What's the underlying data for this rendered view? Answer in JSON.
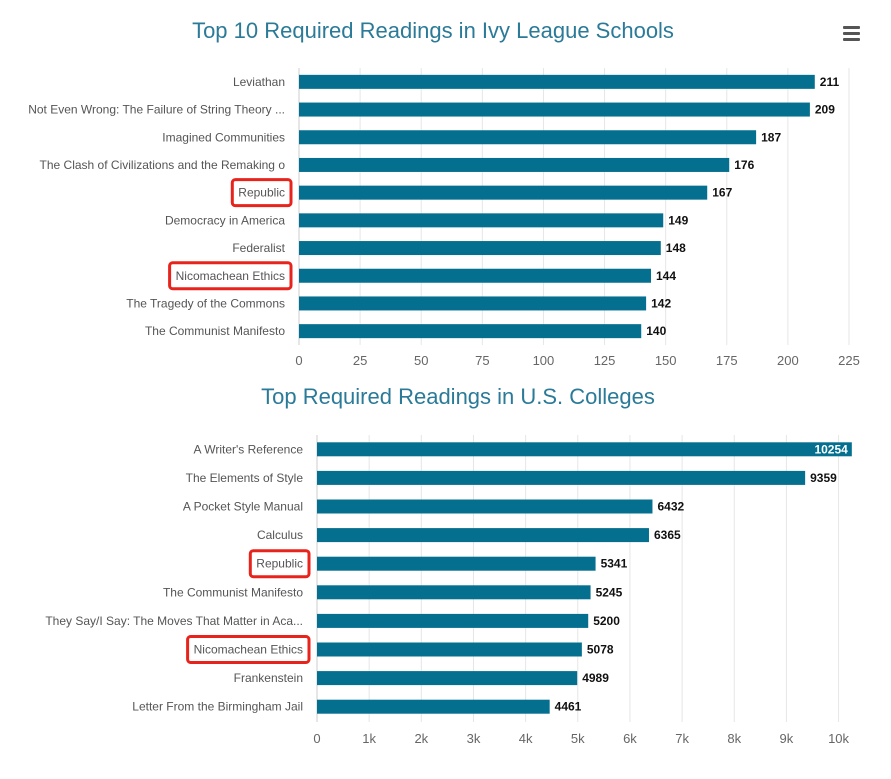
{
  "colors": {
    "bar": "#046f8e",
    "title": "#2a7a98",
    "highlight": "#e8231c"
  },
  "chart_data": [
    {
      "type": "bar",
      "orientation": "horizontal",
      "title": "Top 10 Required Readings in Ivy League Schools",
      "categories": [
        "Leviathan",
        "Not Even Wrong: The Failure of String Theory ...",
        "Imagined Communities",
        "The Clash of Civilizations and the Remaking o",
        "Republic",
        "Democracy in America",
        "Federalist",
        "Nicomachean Ethics",
        "The Tragedy of the Commons",
        "The Communist Manifesto"
      ],
      "values": [
        211,
        209,
        187,
        176,
        167,
        149,
        148,
        144,
        142,
        140
      ],
      "xlim": [
        0,
        225
      ],
      "ticks": [
        0,
        25,
        50,
        75,
        100,
        125,
        150,
        175,
        200,
        225
      ],
      "tick_labels": [
        "0",
        "25",
        "50",
        "75",
        "100",
        "125",
        "150",
        "175",
        "200",
        "225"
      ],
      "highlighted": [
        "Republic",
        "Nicomachean Ethics"
      ],
      "menu_icon": "hamburger-menu-icon"
    },
    {
      "type": "bar",
      "orientation": "horizontal",
      "title": "Top Required Readings in U.S. Colleges",
      "categories": [
        "A Writer's Reference",
        "The Elements of Style",
        "A Pocket Style Manual",
        "Calculus",
        "Republic",
        "The Communist Manifesto",
        "They Say/I Say: The Moves That Matter in Aca...",
        "Nicomachean Ethics",
        "Frankenstein",
        "Letter From the Birmingham Jail"
      ],
      "values": [
        10254,
        9359,
        6432,
        6365,
        5341,
        5245,
        5200,
        5078,
        4989,
        4461
      ],
      "xlim": [
        0,
        10200
      ],
      "ticks": [
        0,
        1000,
        2000,
        3000,
        4000,
        5000,
        6000,
        7000,
        8000,
        9000,
        10000
      ],
      "tick_labels": [
        "0",
        "1k",
        "2k",
        "3k",
        "4k",
        "5k",
        "6k",
        "7k",
        "8k",
        "9k",
        "10k"
      ],
      "highlighted": [
        "Republic",
        "Nicomachean Ethics"
      ]
    }
  ]
}
